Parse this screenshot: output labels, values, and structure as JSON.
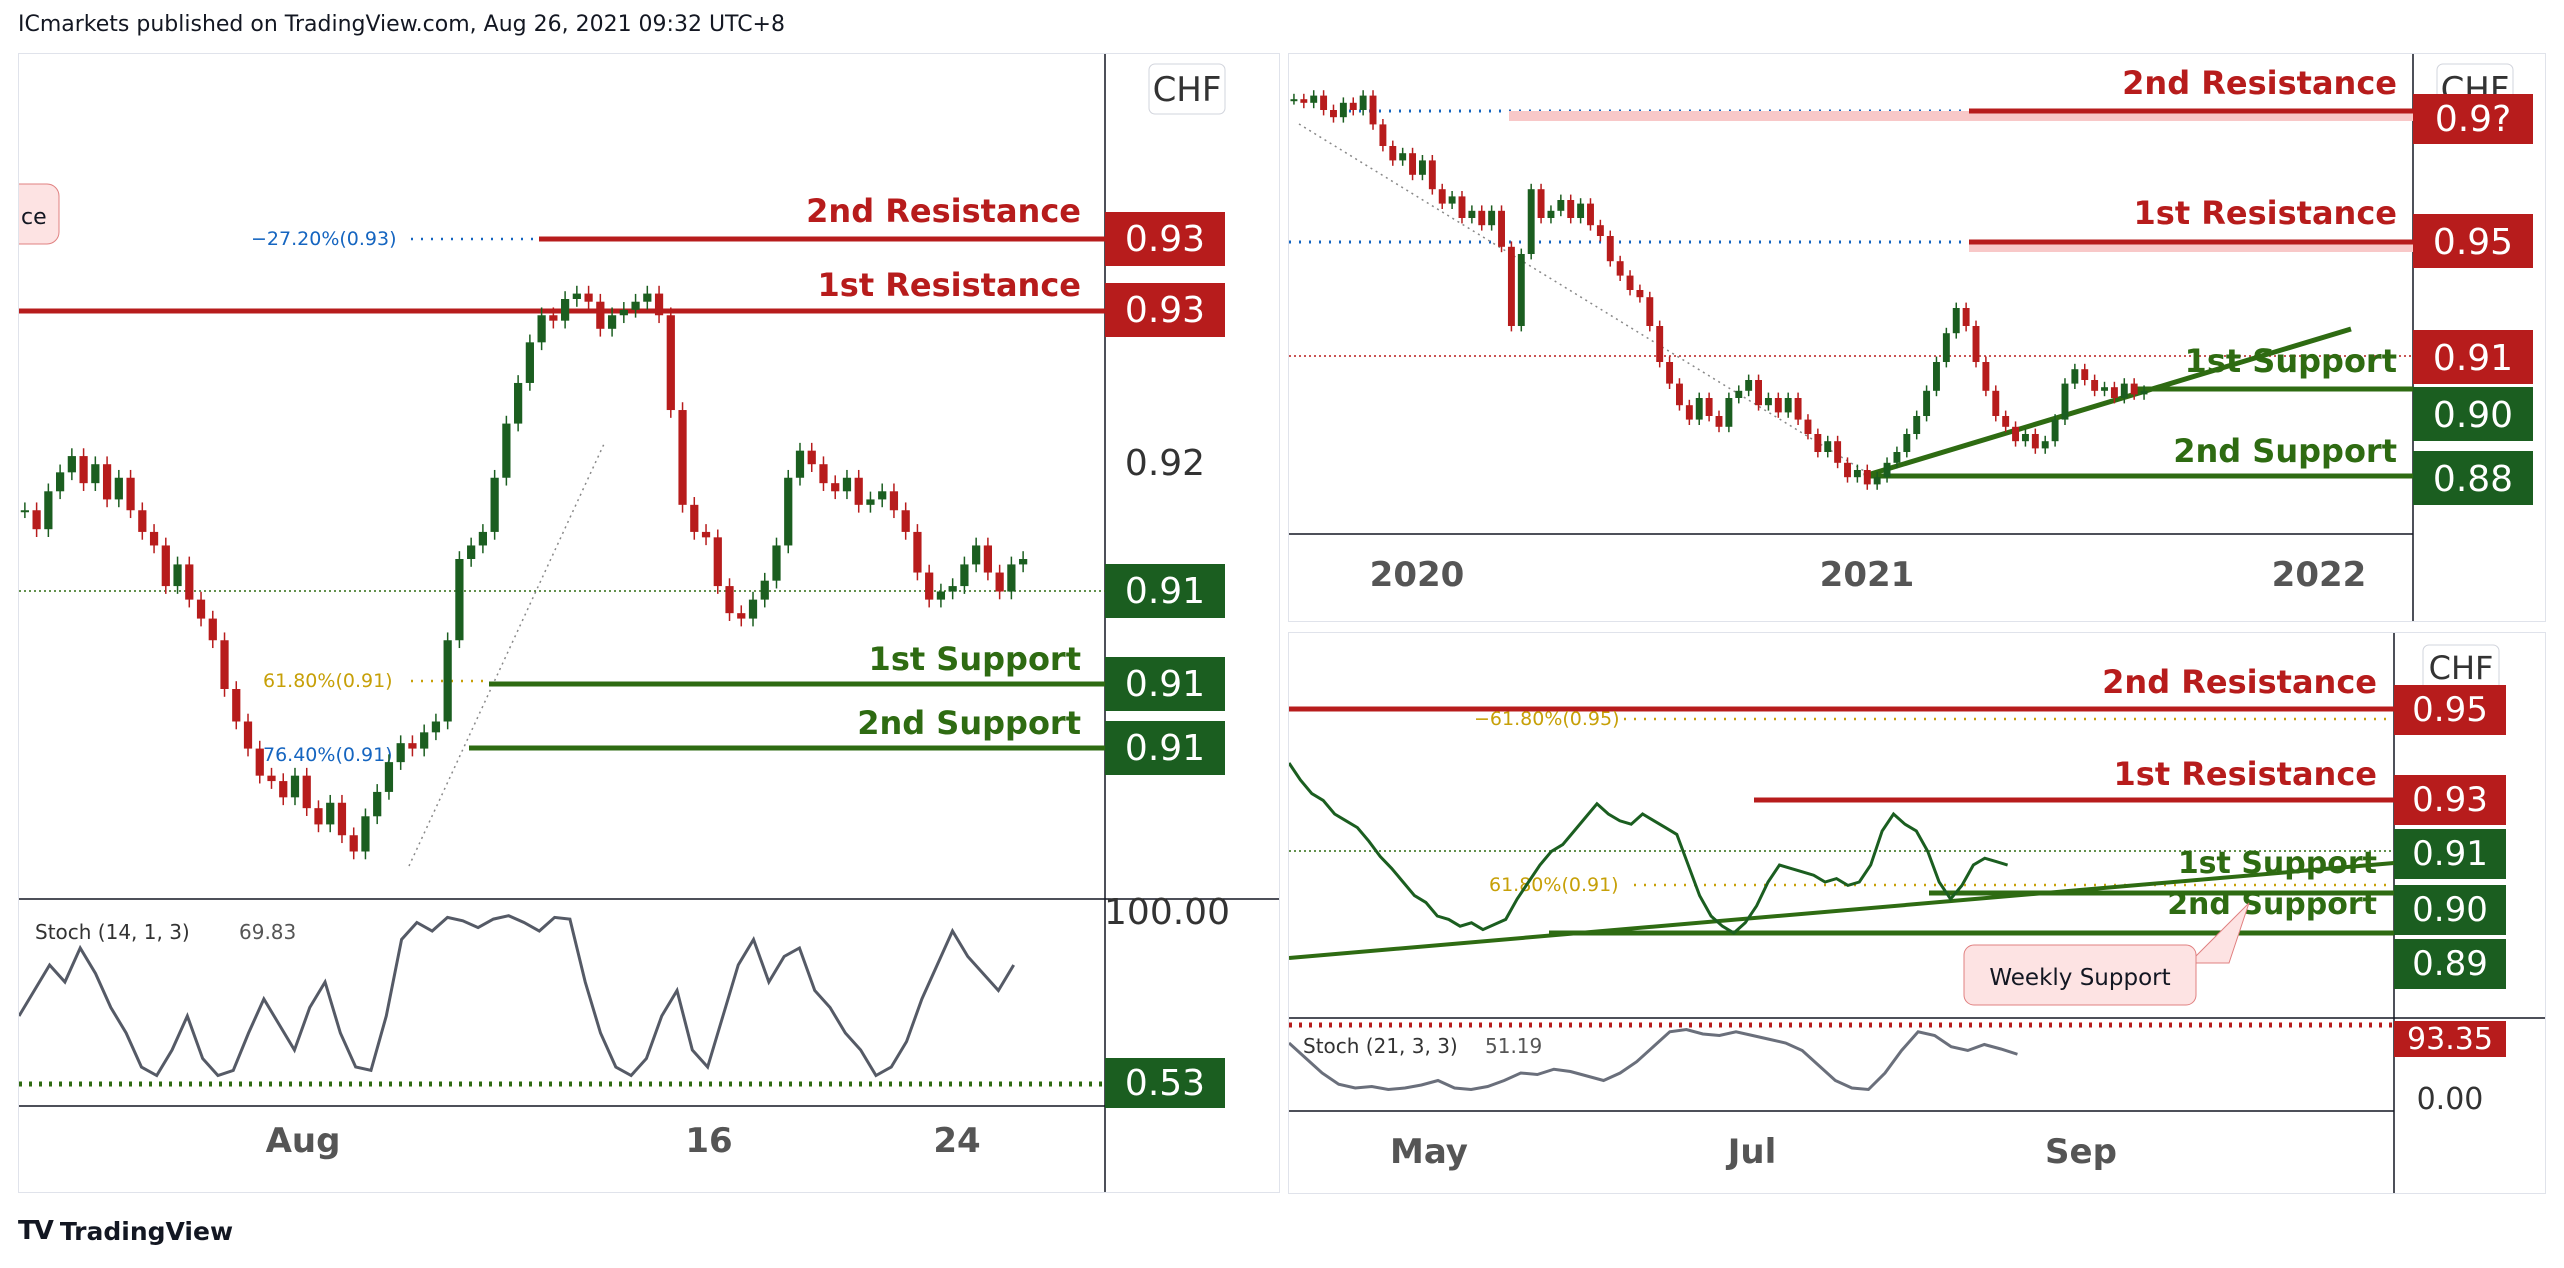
{
  "header": {
    "text": "ICmarkets published on TradingView.com, Aug 26, 2021 09:32 UTC+8"
  },
  "footer": {
    "brand": "TradingView"
  },
  "colors": {
    "resistance": "#b71c1c",
    "support": "#2e6b12",
    "fib": "#c7a008",
    "fib_blue": "#1565c0",
    "bull": "#1b5e20",
    "bear": "#b71c1c",
    "stoch": "#555a66"
  },
  "chart_data": [
    {
      "type": "candlestick",
      "panel": "left",
      "currency": "CHF",
      "price_labels": [
        "0.93",
        "0.93",
        "0.92",
        "0.91",
        "0.91",
        "0.91"
      ],
      "xticks": [
        "Aug",
        "16",
        "24"
      ],
      "levels": [
        {
          "name": "2nd Resistance",
          "value": "0.93",
          "kind": "resistance"
        },
        {
          "name": "1st Resistance",
          "value": "0.93",
          "kind": "resistance"
        },
        {
          "name": "1st Support",
          "value": "0.91",
          "kind": "support"
        },
        {
          "name": "2nd Support",
          "value": "0.91",
          "kind": "support"
        }
      ],
      "fib": [
        {
          "label": "−27.20%(0.93)",
          "color": "blue"
        },
        {
          "label": "61.80%(0.91)",
          "color": "gold"
        },
        {
          "label": "76.40%(0.91)",
          "color": "blue"
        }
      ],
      "current_price": "0.91",
      "callout_fragment": "ce",
      "indicator": {
        "label": "Stoch (14, 1, 3)",
        "value": "69.83",
        "axis_top": "100.00",
        "axis_current": "0.53"
      },
      "series_close": [
        0.9138,
        0.9131,
        0.9145,
        0.9152,
        0.9158,
        0.9148,
        0.9155,
        0.9142,
        0.915,
        0.9138,
        0.913,
        0.9125,
        0.911,
        0.9118,
        0.9105,
        0.9098,
        0.909,
        0.9072,
        0.906,
        0.905,
        0.904,
        0.9038,
        0.9032,
        0.904,
        0.9028,
        0.9022,
        0.903,
        0.9018,
        0.9012,
        0.9025,
        0.9034,
        0.9045,
        0.9052,
        0.905,
        0.9056,
        0.906,
        0.909,
        0.912,
        0.9125,
        0.913,
        0.915,
        0.917,
        0.9185,
        0.92,
        0.921,
        0.9208,
        0.9216,
        0.9218,
        0.9215,
        0.9205,
        0.921,
        0.9212,
        0.9215,
        0.9218,
        0.921,
        0.9175,
        0.914,
        0.913,
        0.9128,
        0.911,
        0.91,
        0.9098,
        0.9105,
        0.9112,
        0.9125,
        0.915,
        0.916,
        0.9155,
        0.9148,
        0.9145,
        0.915,
        0.914,
        0.9142,
        0.9145,
        0.9138,
        0.913,
        0.9115,
        0.9105,
        0.9108,
        0.911,
        0.9118,
        0.9125,
        0.9115,
        0.9108,
        0.9118,
        0.912
      ]
    },
    {
      "type": "candlestick",
      "panel": "top-right",
      "currency": "CHF",
      "price_labels": [
        "0.9?",
        "0.95",
        "0.91",
        "0.90",
        "0.88"
      ],
      "xticks": [
        "2020",
        "2021",
        "2022"
      ],
      "levels": [
        {
          "name": "2nd Resistance",
          "value": "0.9?",
          "kind": "resistance"
        },
        {
          "name": "1st Resistance",
          "value": "0.95",
          "kind": "resistance"
        },
        {
          "name": "1st Support",
          "value": "0.90",
          "kind": "support"
        },
        {
          "name": "2nd Support",
          "value": "0.88",
          "kind": "support"
        }
      ],
      "current_price": "0.91",
      "series_close": [
        0.993,
        0.992,
        0.994,
        0.99,
        0.988,
        0.992,
        0.99,
        0.994,
        0.986,
        0.98,
        0.976,
        0.978,
        0.972,
        0.976,
        0.968,
        0.964,
        0.966,
        0.96,
        0.962,
        0.958,
        0.962,
        0.952,
        0.93,
        0.95,
        0.968,
        0.96,
        0.962,
        0.965,
        0.96,
        0.964,
        0.958,
        0.955,
        0.948,
        0.944,
        0.94,
        0.938,
        0.93,
        0.92,
        0.914,
        0.908,
        0.904,
        0.91,
        0.905,
        0.902,
        0.91,
        0.912,
        0.915,
        0.908,
        0.91,
        0.906,
        0.91,
        0.904,
        0.9,
        0.895,
        0.898,
        0.892,
        0.888,
        0.89,
        0.886,
        0.888,
        0.892,
        0.895,
        0.9,
        0.905,
        0.912,
        0.92,
        0.928,
        0.935,
        0.93,
        0.92,
        0.912,
        0.905,
        0.902,
        0.898,
        0.9,
        0.896,
        0.898,
        0.904,
        0.914,
        0.918,
        0.915,
        0.912,
        0.913,
        0.91,
        0.914,
        0.911,
        0.912
      ]
    },
    {
      "type": "line",
      "panel": "bottom-right",
      "currency": "CHF",
      "price_labels": [
        "0.95",
        "0.93",
        "0.91",
        "0.90",
        "0.89",
        "93.35",
        "0.00"
      ],
      "xticks": [
        "May",
        "Jul",
        "Sep"
      ],
      "levels": [
        {
          "name": "2nd Resistance",
          "value": "0.95",
          "kind": "resistance"
        },
        {
          "name": "1st Resistance",
          "value": "0.93",
          "kind": "resistance"
        },
        {
          "name": "1st Support",
          "value": "0.91",
          "kind": "support"
        },
        {
          "name": "2nd Support",
          "value": "0.90",
          "kind": "support"
        }
      ],
      "fib": [
        {
          "label": "−61.80%(0.95)",
          "color": "gold"
        },
        {
          "label": "61.80%(0.91)",
          "color": "gold"
        }
      ],
      "callout": "Weekly Support",
      "indicator": {
        "label": "Stoch (21, 3, 3)",
        "value": "51.19"
      }
    }
  ]
}
